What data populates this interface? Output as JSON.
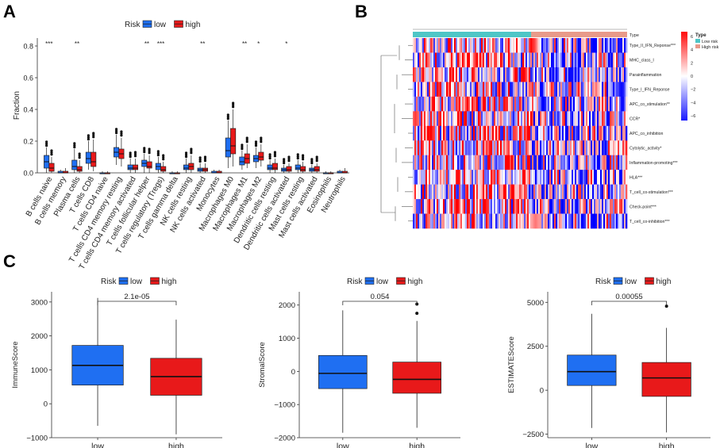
{
  "panel_labels": {
    "a": "A",
    "b": "B",
    "c": "C"
  },
  "colors": {
    "low": "#1f6ff2",
    "high": "#e8191a",
    "cyan": "#4ec6c6",
    "salmon": "#e89a8a",
    "blue_dark": "#1a1aff",
    "red_dark": "#ff0a0a"
  },
  "chart_data": [
    {
      "type": "boxplot",
      "panel": "A",
      "ylabel": "Fraction",
      "ylim": [
        0,
        0.85
      ],
      "yticks": [
        "0.0",
        "0.2",
        "0.4",
        "0.6",
        "0.8"
      ],
      "legend": {
        "title": "Risk",
        "items": [
          "low",
          "high"
        ]
      },
      "categories": [
        "B cells naive",
        "B cells memory",
        "Plasma cells",
        "T cells CD8",
        "T cells CD4 naive",
        "T cells CD4 memory resting",
        "T cells CD4 memory activated",
        "T cells follicular helper",
        "T cells regulatory (Tregs)",
        "T cells gamma delta",
        "NK cells resting",
        "NK cells activated",
        "Monocytes",
        "Macrophages M0",
        "Macrophages M1",
        "Macrophages M2",
        "Dendritic cells resting",
        "Dendritic cells activated",
        "Mast cells resting",
        "Mast cells activated",
        "Eosinophils",
        "Neutrophils"
      ],
      "significance": [
        "***",
        "",
        "**",
        "",
        "",
        "",
        "",
        "**",
        "***",
        "",
        "",
        "**",
        "",
        "",
        "**",
        "*",
        "",
        "*",
        "",
        "",
        "",
        ""
      ],
      "series": [
        {
          "name": "low",
          "boxes": [
            [
              0.0,
              0.03,
              0.07,
              0.11,
              0.16
            ],
            [
              0,
              0,
              0,
              0.01,
              0.02
            ],
            [
              0.0,
              0.02,
              0.04,
              0.08,
              0.15
            ],
            [
              0.02,
              0.06,
              0.09,
              0.13,
              0.2
            ],
            [
              0,
              0,
              0,
              0,
              0.01
            ],
            [
              0.05,
              0.1,
              0.13,
              0.16,
              0.24
            ],
            [
              0.0,
              0.02,
              0.03,
              0.05,
              0.09
            ],
            [
              0.0,
              0.04,
              0.06,
              0.08,
              0.12
            ],
            [
              0.0,
              0.02,
              0.04,
              0.06,
              0.1
            ],
            [
              0,
              0,
              0,
              0,
              0.01
            ],
            [
              0.0,
              0.02,
              0.03,
              0.05,
              0.09
            ],
            [
              0.0,
              0.01,
              0.02,
              0.03,
              0.06
            ],
            [
              0,
              0,
              0,
              0.01,
              0.02
            ],
            [
              0.03,
              0.1,
              0.14,
              0.22,
              0.33
            ],
            [
              0.02,
              0.05,
              0.07,
              0.1,
              0.14
            ],
            [
              0.03,
              0.07,
              0.09,
              0.11,
              0.16
            ],
            [
              0.0,
              0.02,
              0.03,
              0.05,
              0.08
            ],
            [
              0.0,
              0.01,
              0.02,
              0.03,
              0.05
            ],
            [
              0.0,
              0.02,
              0.03,
              0.05,
              0.08
            ],
            [
              0,
              0.01,
              0.02,
              0.03,
              0.05
            ],
            [
              0,
              0,
              0,
              0,
              0.01
            ],
            [
              0,
              0,
              0,
              0.01,
              0.02
            ]
          ]
        },
        {
          "name": "high",
          "boxes": [
            [
              0.0,
              0.01,
              0.03,
              0.06,
              0.1
            ],
            [
              0,
              0,
              0,
              0.01,
              0.03
            ],
            [
              0.0,
              0.01,
              0.02,
              0.04,
              0.08
            ],
            [
              0.01,
              0.04,
              0.07,
              0.13,
              0.21
            ],
            [
              0,
              0,
              0,
              0,
              0.01
            ],
            [
              0.04,
              0.09,
              0.12,
              0.15,
              0.22
            ],
            [
              0.0,
              0.02,
              0.03,
              0.05,
              0.09
            ],
            [
              0.0,
              0.03,
              0.04,
              0.07,
              0.11
            ],
            [
              0.0,
              0.01,
              0.02,
              0.04,
              0.07
            ],
            [
              0,
              0,
              0,
              0,
              0.01
            ],
            [
              0.0,
              0.02,
              0.04,
              0.06,
              0.11
            ],
            [
              0.0,
              0.01,
              0.02,
              0.03,
              0.06
            ],
            [
              0,
              0,
              0,
              0.01,
              0.02
            ],
            [
              0.04,
              0.12,
              0.17,
              0.28,
              0.4
            ],
            [
              0.03,
              0.06,
              0.09,
              0.12,
              0.18
            ],
            [
              0.04,
              0.08,
              0.1,
              0.13,
              0.18
            ],
            [
              0.0,
              0.02,
              0.03,
              0.06,
              0.09
            ],
            [
              0.0,
              0.01,
              0.02,
              0.04,
              0.06
            ],
            [
              0.0,
              0.01,
              0.02,
              0.04,
              0.07
            ],
            [
              0,
              0.01,
              0.02,
              0.04,
              0.06
            ],
            [
              0,
              0,
              0,
              0,
              0.01
            ],
            [
              0,
              0,
              0,
              0.01,
              0.03
            ]
          ]
        }
      ]
    },
    {
      "type": "heatmap",
      "panel": "B",
      "rows": [
        "Type_II_IFN_Reponse***",
        "MHC_class_I",
        "Parainflammation",
        "Type_I_IFN_Reponse",
        "APC_co_stimulation**",
        "CCR*",
        "APC_co_inhibition",
        "Cytolytic_activity*",
        "Inflammation-promoting***",
        "HLA***",
        "T_cell_co-stimulation***",
        "Check-point***",
        "T_cell_co-inhibition***"
      ],
      "annotation": {
        "label": "Type",
        "groups": [
          "Low risk",
          "High risk"
        ]
      },
      "scale": {
        "ticks": [
          "6",
          "4",
          "2",
          "0",
          "−2",
          "−4",
          "−6"
        ]
      },
      "legend_title": "Type"
    },
    {
      "type": "boxplot",
      "panel": "C1",
      "ylabel": "ImmuneScore",
      "categories": [
        "low",
        "high"
      ],
      "ylim": [
        -1000,
        3300
      ],
      "yticks": [
        -1000,
        0,
        1000,
        2000,
        3000
      ],
      "ytick_labels": [
        "−1000",
        "0",
        "1000",
        "2000",
        "3000"
      ],
      "boxes": [
        [
          -650,
          550,
          1130,
          1720,
          3120
        ],
        [
          -900,
          250,
          800,
          1340,
          2480
        ]
      ],
      "outliers": [
        [],
        []
      ],
      "pvalue": "2.1e-05",
      "legend": {
        "title": "Risk",
        "items": [
          "low",
          "high"
        ]
      }
    },
    {
      "type": "boxplot",
      "panel": "C2",
      "ylabel": "StromalScore",
      "categories": [
        "low",
        "high"
      ],
      "ylim": [
        -2000,
        2400
      ],
      "yticks": [
        -2000,
        -1000,
        0,
        1000,
        2000
      ],
      "ytick_labels": [
        "−2000",
        "−1000",
        "0",
        "1000",
        "2000"
      ],
      "boxes": [
        [
          -1850,
          -520,
          -60,
          480,
          1840
        ],
        [
          -1700,
          -660,
          -240,
          280,
          1520
        ]
      ],
      "outliers": [
        [],
        [
          1750,
          2030
        ]
      ],
      "pvalue": "0.054",
      "legend": {
        "title": "Risk",
        "items": [
          "low",
          "high"
        ]
      }
    },
    {
      "type": "boxplot",
      "panel": "C3",
      "ylabel": "ESTIMATEScore",
      "categories": [
        "low",
        "high"
      ],
      "ylim": [
        -2700,
        5600
      ],
      "yticks": [
        -2500,
        0,
        2500,
        5000
      ],
      "ytick_labels": [
        "−2500",
        "0",
        "2500",
        "5000"
      ],
      "boxes": [
        [
          -2150,
          270,
          1060,
          2000,
          4350
        ],
        [
          -2400,
          -350,
          700,
          1580,
          3550
        ]
      ],
      "outliers": [
        [],
        [
          4780
        ]
      ],
      "pvalue": "0.00055",
      "legend": {
        "title": "Risk",
        "items": [
          "low",
          "high"
        ]
      }
    }
  ]
}
